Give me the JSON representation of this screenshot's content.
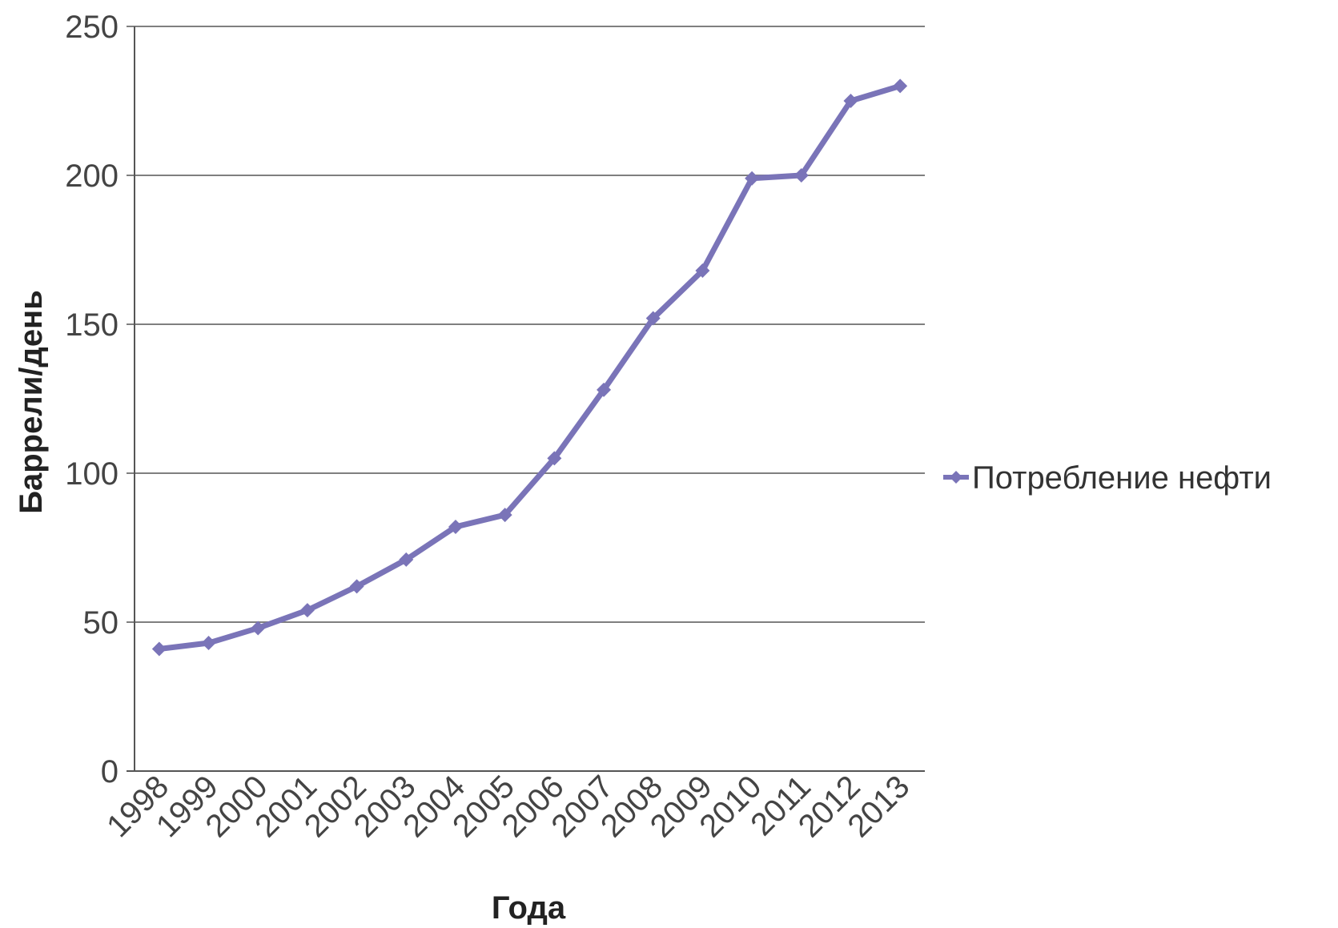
{
  "chart_data": {
    "type": "line",
    "x": [
      "1998",
      "1999",
      "2000",
      "2001",
      "2002",
      "2003",
      "2004",
      "2005",
      "2006",
      "2007",
      "2008",
      "2009",
      "2010",
      "2011",
      "2012",
      "2013"
    ],
    "series": [
      {
        "name": "Потребление нефти",
        "values": [
          41,
          43,
          48,
          54,
          62,
          71,
          82,
          86,
          105,
          128,
          152,
          168,
          199,
          200,
          225,
          230
        ],
        "color": "#7a74b8",
        "marker": "diamond"
      }
    ],
    "xlabel": "Года",
    "ylabel": "Баррели/день",
    "ylim": [
      0,
      250
    ],
    "yticks": [
      "0",
      "50",
      "100",
      "150",
      "200",
      "250"
    ],
    "grid": "horizontal",
    "legend": "right"
  }
}
